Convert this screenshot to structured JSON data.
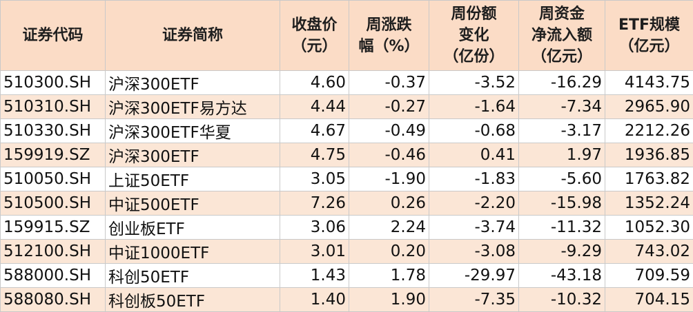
{
  "headers": [
    [
      "证券代码"
    ],
    [
      "证券简称"
    ],
    [
      "收盘价",
      "（元）"
    ],
    [
      "周涨跌",
      "幅（%）"
    ],
    [
      "周份额",
      "变化",
      "（亿份）"
    ],
    [
      "周资金",
      "净流入额",
      "（亿元）"
    ],
    [
      "ETF规模",
      "（亿元）"
    ]
  ],
  "rows": [
    [
      "510300.SH",
      "沪深300ETF",
      "4.60",
      "-0.37",
      "-3.52",
      "-16.29",
      "4143.75"
    ],
    [
      "510310.SH",
      "沪深300ETF易方达",
      "4.44",
      "-0.27",
      "-1.64",
      "-7.34",
      "2965.90"
    ],
    [
      "510330.SH",
      "沪深300ETF华夏",
      "4.67",
      "-0.49",
      "-0.68",
      "-3.17",
      "2212.26"
    ],
    [
      "159919.SZ",
      "沪深300ETF",
      "4.75",
      "-0.46",
      "0.41",
      "1.97",
      "1936.85"
    ],
    [
      "510050.SH",
      "上证50ETF",
      "3.05",
      "-1.90",
      "-1.83",
      "-5.60",
      "1763.82"
    ],
    [
      "510500.SH",
      "中证500ETF",
      "7.26",
      "0.26",
      "-2.20",
      "-15.98",
      "1352.24"
    ],
    [
      "159915.SZ",
      "创业板ETF",
      "3.06",
      "2.24",
      "-3.74",
      "-11.32",
      "1052.30"
    ],
    [
      "512100.SH",
      "中证1000ETF",
      "3.01",
      "0.20",
      "-3.08",
      "-9.29",
      "743.02"
    ],
    [
      "588000.SH",
      "科创50ETF",
      "1.43",
      "1.78",
      "-29.97",
      "-43.18",
      "709.59"
    ],
    [
      "588080.SH",
      "科创板50ETF",
      "1.40",
      "1.90",
      "-7.35",
      "-10.32",
      "704.15"
    ]
  ],
  "colors": {
    "header_bg": "#fbdcc6",
    "stripe_bg": "#fbe6d6",
    "row_bg": "#ffffff",
    "grid": "#c9c9c9"
  }
}
